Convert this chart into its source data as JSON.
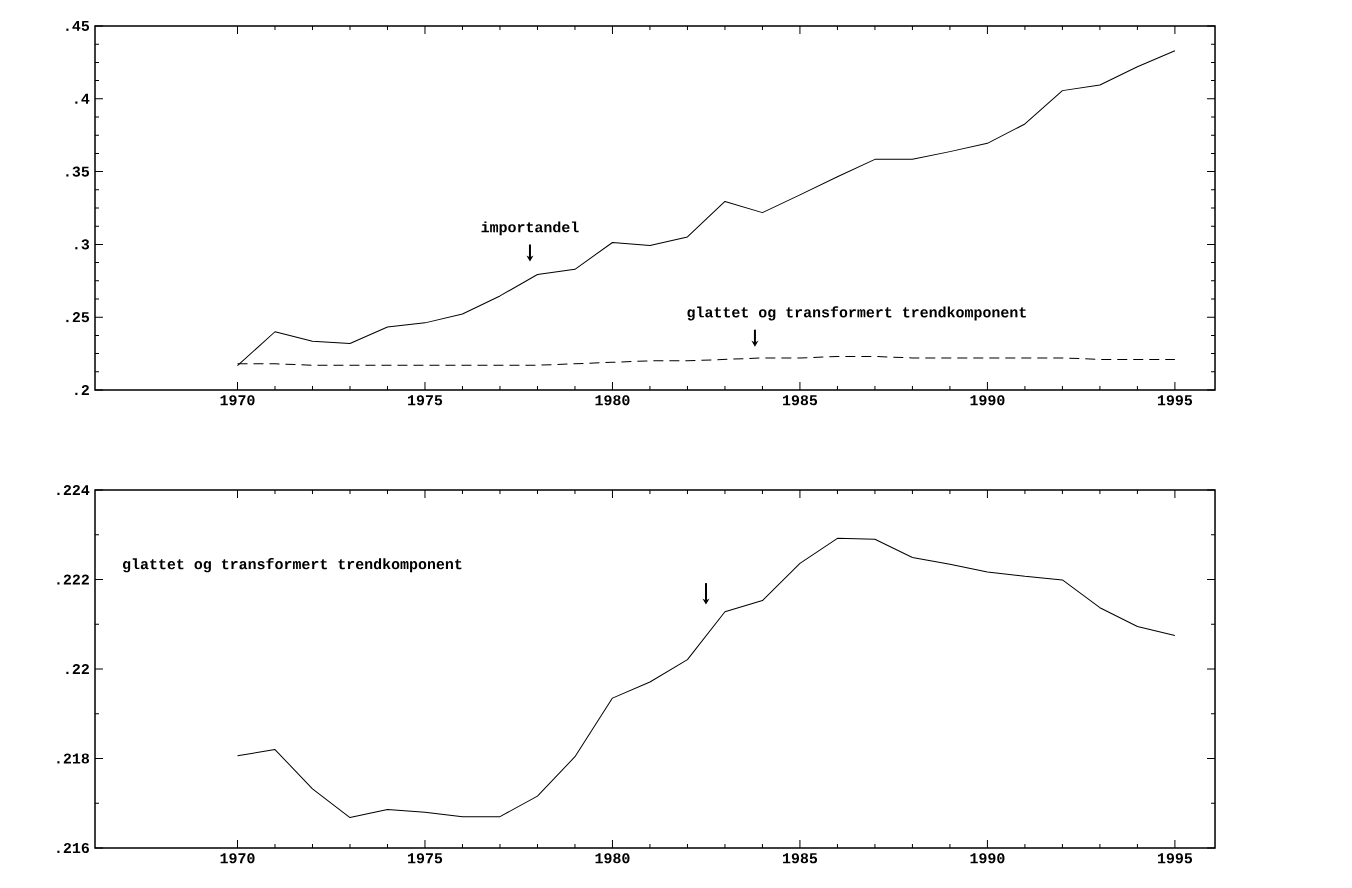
{
  "chart_data": [
    {
      "type": "line",
      "x": [
        1970,
        1971,
        1972,
        1973,
        1974,
        1975,
        1976,
        1977,
        1978,
        1979,
        1980,
        1981,
        1982,
        1983,
        1984,
        1985,
        1986,
        1987,
        1988,
        1989,
        1990,
        1991,
        1992,
        1993,
        1994,
        1995
      ],
      "series": [
        {
          "color": "#000000",
          "line_style": "solid",
          "values": [
            0.2167,
            0.24,
            0.2334,
            0.2319,
            0.2433,
            0.2461,
            0.2522,
            0.2646,
            0.2793,
            0.2829,
            0.3013,
            0.2993,
            0.3051,
            0.3295,
            0.3218,
            0.334,
            0.3465,
            0.3584,
            0.3584,
            0.3637,
            0.3694,
            0.3827,
            0.4056,
            0.4095,
            0.422,
            0.433
          ]
        },
        {
          "color": "#000000",
          "line_style": "dashed",
          "values": [
            0.218,
            0.218,
            0.217,
            0.217,
            0.217,
            0.217,
            0.217,
            0.217,
            0.217,
            0.218,
            0.219,
            0.22,
            0.22,
            0.221,
            0.222,
            0.222,
            0.223,
            0.223,
            0.222,
            0.222,
            0.222,
            0.222,
            0.222,
            0.221,
            0.221,
            0.221
          ]
        }
      ],
      "xlim": [
        1966.2,
        1996.07
      ],
      "xticks": [
        1970,
        1975,
        1980,
        1985,
        1990,
        1995
      ],
      "ylim": [
        0.2,
        0.45
      ],
      "yticks": [
        {
          "value": 0.2,
          "label": ".2"
        },
        {
          "value": 0.25,
          "label": ".25"
        },
        {
          "value": 0.3,
          "label": ".3"
        },
        {
          "value": 0.35,
          "label": ".35"
        },
        {
          "value": 0.4,
          "label": ".4"
        },
        {
          "value": 0.45,
          "label": ".45"
        }
      ],
      "annotations": [
        {
          "text": "importandel",
          "x": 1977.8,
          "y": 0.28
        },
        {
          "text": "glattet og transformert trendkomponent",
          "x": 1983.8,
          "y": 0.2215
        }
      ]
    },
    {
      "type": "line",
      "x": [
        1970,
        1971,
        1972,
        1973,
        1974,
        1975,
        1976,
        1977,
        1978,
        1979,
        1980,
        1981,
        1982,
        1983,
        1984,
        1985,
        1986,
        1987,
        1988,
        1989,
        1990,
        1991,
        1992,
        1993,
        1994,
        1995
      ],
      "series": [
        {
          "color": "#000000",
          "line_style": "solid",
          "values": [
            0.21806,
            0.2182,
            0.21732,
            0.21668,
            0.21686,
            0.2168,
            0.2167,
            0.2167,
            0.21716,
            0.21804,
            0.21935,
            0.21971,
            0.22021,
            0.22128,
            0.22153,
            0.22236,
            0.22292,
            0.2229,
            0.22249,
            0.22234,
            0.22217,
            0.22207,
            0.22199,
            0.22137,
            0.22095,
            0.22075
          ]
        }
      ],
      "xlim": [
        1966.2,
        1996.07
      ],
      "xticks": [
        1970,
        1975,
        1980,
        1985,
        1990,
        1995
      ],
      "ylim": [
        0.216,
        0.224
      ],
      "yticks": [
        {
          "value": 0.216,
          "label": ".216"
        },
        {
          "value": 0.218,
          "label": ".218"
        },
        {
          "value": 0.22,
          "label": ".22"
        },
        {
          "value": 0.222,
          "label": ".222"
        },
        {
          "value": 0.224,
          "label": ".224"
        }
      ],
      "annotations": [
        "glattet og transformert trendkomponent"
      ]
    }
  ]
}
